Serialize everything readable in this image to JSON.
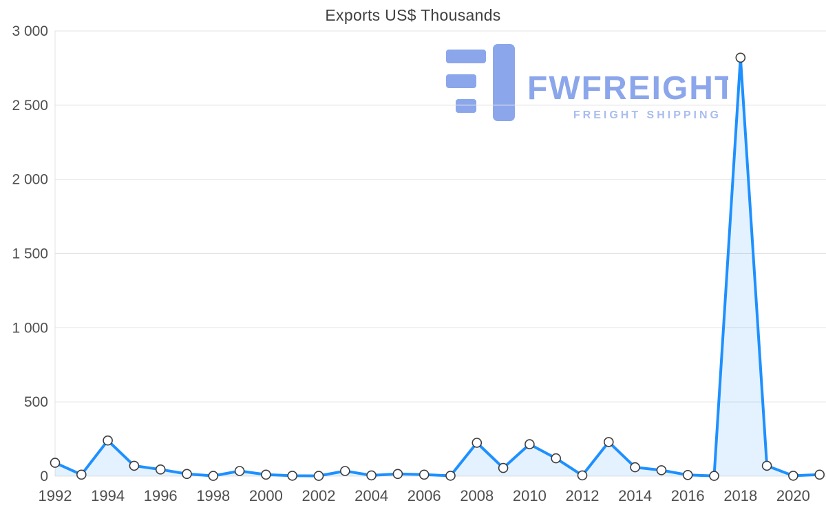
{
  "title": "Exports US$ Thousands",
  "watermark": {
    "brand": "FWFREIGHT",
    "tagline": "FREIGHT SHIPPING",
    "brand_color": "#8ba6ea",
    "tagline_color": "#aabdee",
    "mark_color": "#8ba6ea"
  },
  "chart_data": {
    "type": "area",
    "title": "Exports US$ Thousands",
    "x": [
      1992,
      1993,
      1994,
      1995,
      1996,
      1997,
      1998,
      1999,
      2000,
      2001,
      2002,
      2003,
      2004,
      2005,
      2006,
      2007,
      2008,
      2009,
      2010,
      2011,
      2012,
      2013,
      2014,
      2015,
      2016,
      2017,
      2018,
      2019,
      2020,
      2021
    ],
    "series": [
      {
        "name": "Exports US$ Thousands",
        "values": [
          90,
          10,
          240,
          70,
          45,
          15,
          2,
          35,
          10,
          3,
          2,
          35,
          5,
          15,
          10,
          3,
          225,
          55,
          215,
          120,
          5,
          230,
          60,
          40,
          8,
          2,
          2820,
          70,
          3,
          10
        ]
      }
    ],
    "ylim": [
      0,
      3000
    ],
    "y_ticks": [
      0,
      500,
      1000,
      1500,
      2000,
      2500,
      3000
    ],
    "y_tick_labels": [
      "0",
      "500",
      "1 000",
      "1 500",
      "2 000",
      "2 500",
      "3 000"
    ],
    "x_tick_years": [
      1992,
      1994,
      1996,
      1998,
      2000,
      2002,
      2004,
      2006,
      2008,
      2010,
      2012,
      2014,
      2016,
      2018,
      2020
    ],
    "grid": true,
    "legend": "none",
    "line_color": "#1e90ff",
    "fill_color": "rgba(30,144,255,0.12)",
    "marker_fill": "#ffffff",
    "marker_stroke": "#3c3c3c",
    "axis_label_color": "#4f4f4f",
    "grid_color": "#e3e3e3"
  }
}
